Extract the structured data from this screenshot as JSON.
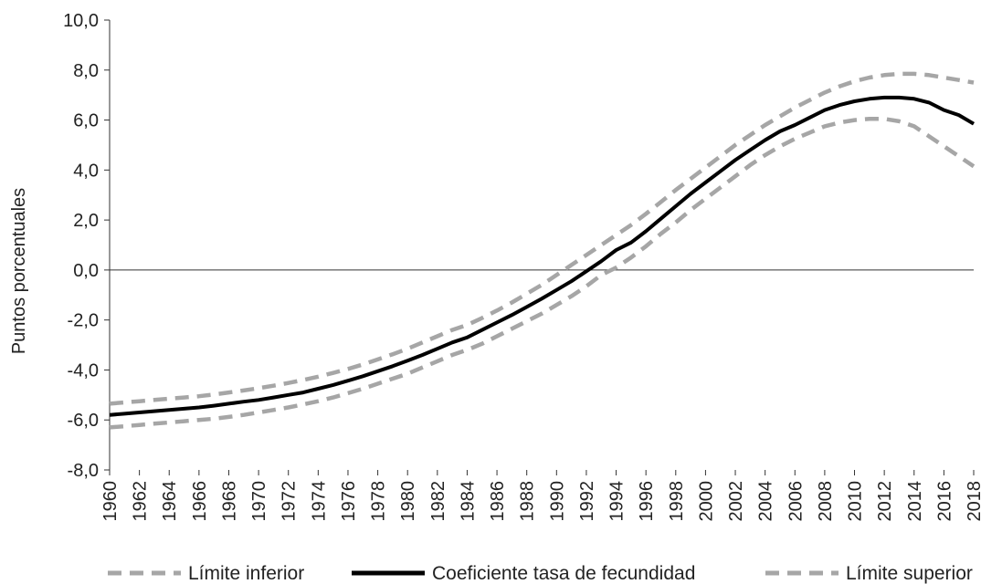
{
  "chart_data": {
    "type": "line",
    "ylabel": "Puntos porcentuales",
    "ylim": [
      -8,
      10
    ],
    "y_ticks": [
      "-8,0",
      "-6,0",
      "-4,0",
      "-2,0",
      "0,0",
      "2,0",
      "4,0",
      "6,0",
      "8,0",
      "10,0"
    ],
    "x_ticks": [
      "1960",
      "1962",
      "1964",
      "1966",
      "1968",
      "1970",
      "1972",
      "1974",
      "1976",
      "1978",
      "1980",
      "1982",
      "1984",
      "1986",
      "1988",
      "1990",
      "1992",
      "1994",
      "1996",
      "1998",
      "2000",
      "2002",
      "2004",
      "2006",
      "2008",
      "2010",
      "2012",
      "2014",
      "2016",
      "2018"
    ],
    "grid": false,
    "legend_position": "bottom",
    "x": [
      1960,
      1961,
      1962,
      1963,
      1964,
      1965,
      1966,
      1967,
      1968,
      1969,
      1970,
      1971,
      1972,
      1973,
      1974,
      1975,
      1976,
      1977,
      1978,
      1979,
      1980,
      1981,
      1982,
      1983,
      1984,
      1985,
      1986,
      1987,
      1988,
      1989,
      1990,
      1991,
      1992,
      1993,
      1994,
      1995,
      1996,
      1997,
      1998,
      1999,
      2000,
      2001,
      2002,
      2003,
      2004,
      2005,
      2006,
      2007,
      2008,
      2009,
      2010,
      2011,
      2012,
      2013,
      2014,
      2015,
      2016,
      2017,
      2018
    ],
    "series": [
      {
        "name": "Límite inferior",
        "style": "dashed",
        "color": "#a6a6a6",
        "values": [
          -6.3,
          -6.25,
          -6.2,
          -6.15,
          -6.1,
          -6.05,
          -6.0,
          -5.95,
          -5.88,
          -5.8,
          -5.7,
          -5.6,
          -5.5,
          -5.38,
          -5.25,
          -5.1,
          -4.93,
          -4.75,
          -4.55,
          -4.35,
          -4.15,
          -3.9,
          -3.65,
          -3.4,
          -3.2,
          -2.95,
          -2.65,
          -2.35,
          -2.05,
          -1.75,
          -1.4,
          -1.05,
          -0.65,
          -0.2,
          0.1,
          0.5,
          0.95,
          1.45,
          1.9,
          2.4,
          2.85,
          3.3,
          3.75,
          4.2,
          4.6,
          4.95,
          5.25,
          5.5,
          5.75,
          5.9,
          6.0,
          6.05,
          6.05,
          5.95,
          5.75,
          5.35,
          4.95,
          4.55,
          4.15
        ]
      },
      {
        "name": "Coeficiente tasa de fecundidad",
        "style": "solid",
        "color": "#000000",
        "values": [
          -5.8,
          -5.75,
          -5.7,
          -5.65,
          -5.6,
          -5.55,
          -5.5,
          -5.43,
          -5.35,
          -5.27,
          -5.2,
          -5.1,
          -5.0,
          -4.9,
          -4.75,
          -4.6,
          -4.43,
          -4.25,
          -4.05,
          -3.85,
          -3.63,
          -3.4,
          -3.15,
          -2.9,
          -2.7,
          -2.4,
          -2.1,
          -1.8,
          -1.48,
          -1.15,
          -0.8,
          -0.45,
          -0.05,
          0.35,
          0.8,
          1.1,
          1.55,
          2.05,
          2.55,
          3.05,
          3.5,
          3.95,
          4.4,
          4.8,
          5.2,
          5.55,
          5.8,
          6.1,
          6.4,
          6.6,
          6.75,
          6.85,
          6.9,
          6.9,
          6.85,
          6.7,
          6.4,
          6.2,
          5.85
        ]
      },
      {
        "name": "Límite superior",
        "style": "dashed",
        "color": "#a6a6a6",
        "values": [
          -5.35,
          -5.3,
          -5.25,
          -5.2,
          -5.15,
          -5.1,
          -5.05,
          -4.98,
          -4.9,
          -4.82,
          -4.73,
          -4.63,
          -4.52,
          -4.4,
          -4.27,
          -4.12,
          -3.96,
          -3.78,
          -3.58,
          -3.37,
          -3.15,
          -2.9,
          -2.65,
          -2.4,
          -2.2,
          -1.92,
          -1.62,
          -1.3,
          -0.95,
          -0.6,
          -0.2,
          0.2,
          0.6,
          1.0,
          1.4,
          1.8,
          2.25,
          2.72,
          3.2,
          3.65,
          4.1,
          4.55,
          5.0,
          5.4,
          5.8,
          6.15,
          6.5,
          6.8,
          7.1,
          7.35,
          7.55,
          7.7,
          7.8,
          7.85,
          7.85,
          7.8,
          7.7,
          7.6,
          7.5
        ]
      }
    ]
  }
}
